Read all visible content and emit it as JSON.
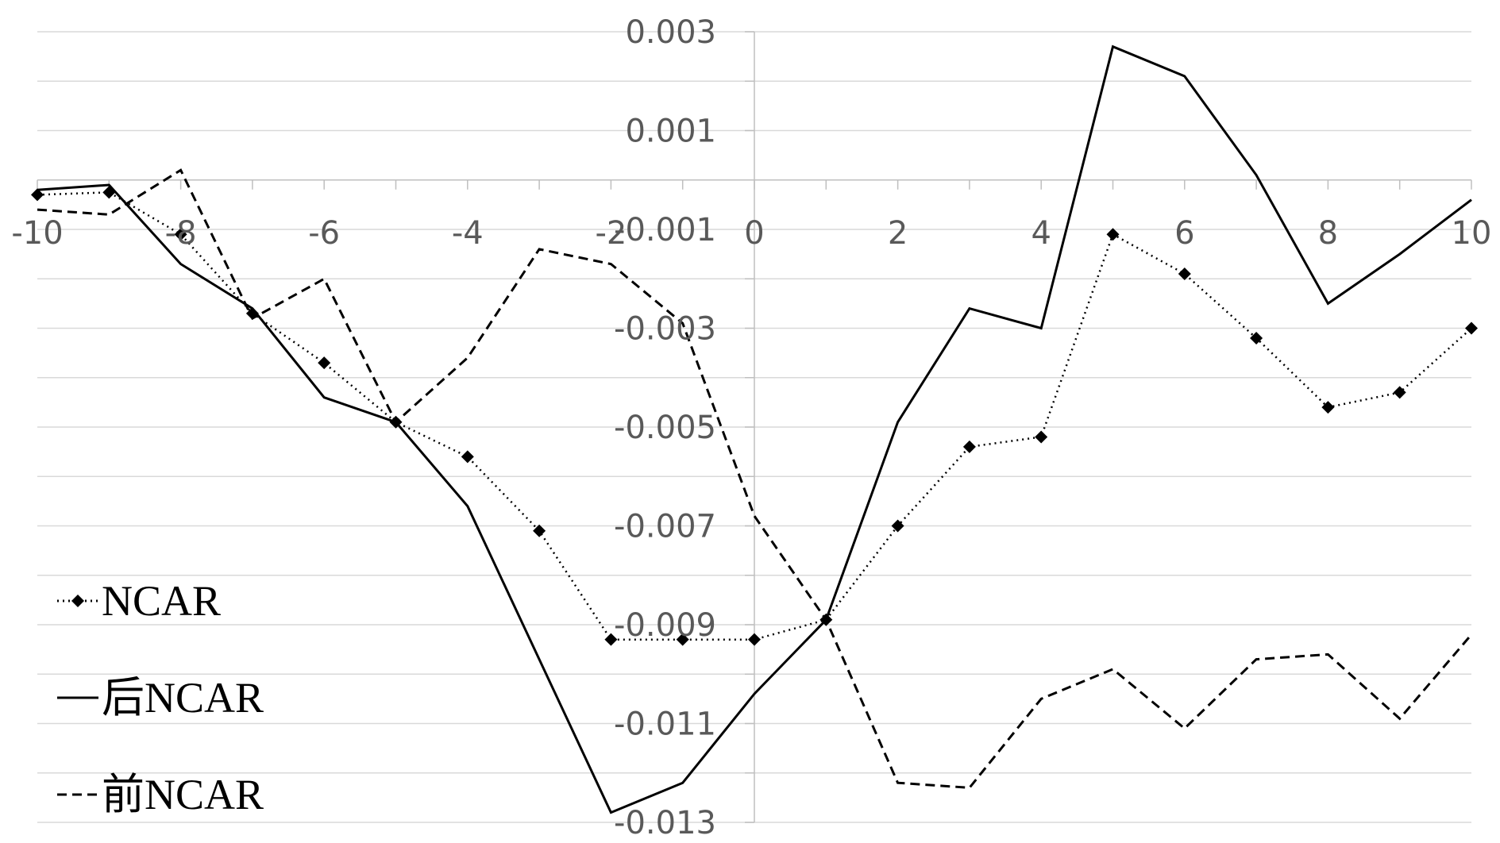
{
  "chart_data": {
    "type": "line",
    "title": "",
    "xlabel": "",
    "ylabel": "",
    "xlim": [
      -10,
      10
    ],
    "ylim": [
      -0.013,
      0.003
    ],
    "x_ticks": [
      -10,
      -8,
      -6,
      -4,
      -2,
      0,
      2,
      4,
      6,
      8,
      10
    ],
    "x_tick_labels": [
      "-10",
      "-8",
      "-6",
      "-4",
      "-2",
      "0",
      "2",
      "4",
      "6",
      "8",
      "10"
    ],
    "y_ticks": [
      0.003,
      0.001,
      -0.001,
      -0.003,
      -0.005,
      -0.007,
      -0.009,
      -0.011,
      -0.013
    ],
    "y_tick_labels": [
      "0.003",
      "0.001",
      "-0.001",
      "-0.003",
      "-0.005",
      "-0.007",
      "-0.009",
      "-0.011",
      "-0.013"
    ],
    "grid": true,
    "legend_position": "bottom-left",
    "x": [
      -10,
      -9,
      -8,
      -7,
      -6,
      -5,
      -4,
      -3,
      -2,
      -1,
      0,
      1,
      2,
      3,
      4,
      5,
      6,
      7,
      8,
      9,
      10
    ],
    "series": [
      {
        "name": "NCAR",
        "style": "dotted-diamond",
        "color": "#000000",
        "values": [
          -0.0003,
          -0.00025,
          -0.0011,
          -0.0027,
          -0.0037,
          -0.0049,
          -0.0056,
          -0.0071,
          -0.0093,
          -0.0093,
          -0.0093,
          -0.0089,
          -0.007,
          -0.0054,
          -0.0052,
          -0.0011,
          -0.0019,
          -0.0032,
          -0.0046,
          -0.0043,
          -0.003
        ]
      },
      {
        "name": "后NCAR",
        "style": "solid",
        "color": "#000000",
        "values": [
          -0.0002,
          -0.0001,
          -0.0017,
          -0.0026,
          -0.0044,
          -0.0049,
          -0.0066,
          -0.0097,
          -0.0128,
          -0.0122,
          -0.0104,
          -0.0089,
          -0.0049,
          -0.0026,
          -0.003,
          0.0027,
          0.0021,
          0.0001,
          -0.0025,
          -0.0015,
          -0.0004
        ]
      },
      {
        "name": "前NCAR",
        "style": "dashed",
        "color": "#000000",
        "values": [
          -0.0006,
          -0.0007,
          0.0002,
          -0.0028,
          -0.002,
          -0.0049,
          -0.0036,
          -0.0014,
          -0.0017,
          -0.0029,
          -0.0068,
          -0.0089,
          -0.0122,
          -0.0123,
          -0.0105,
          -0.0099,
          -0.0111,
          -0.0097,
          -0.0096,
          -0.0109,
          -0.0092
        ]
      }
    ]
  }
}
